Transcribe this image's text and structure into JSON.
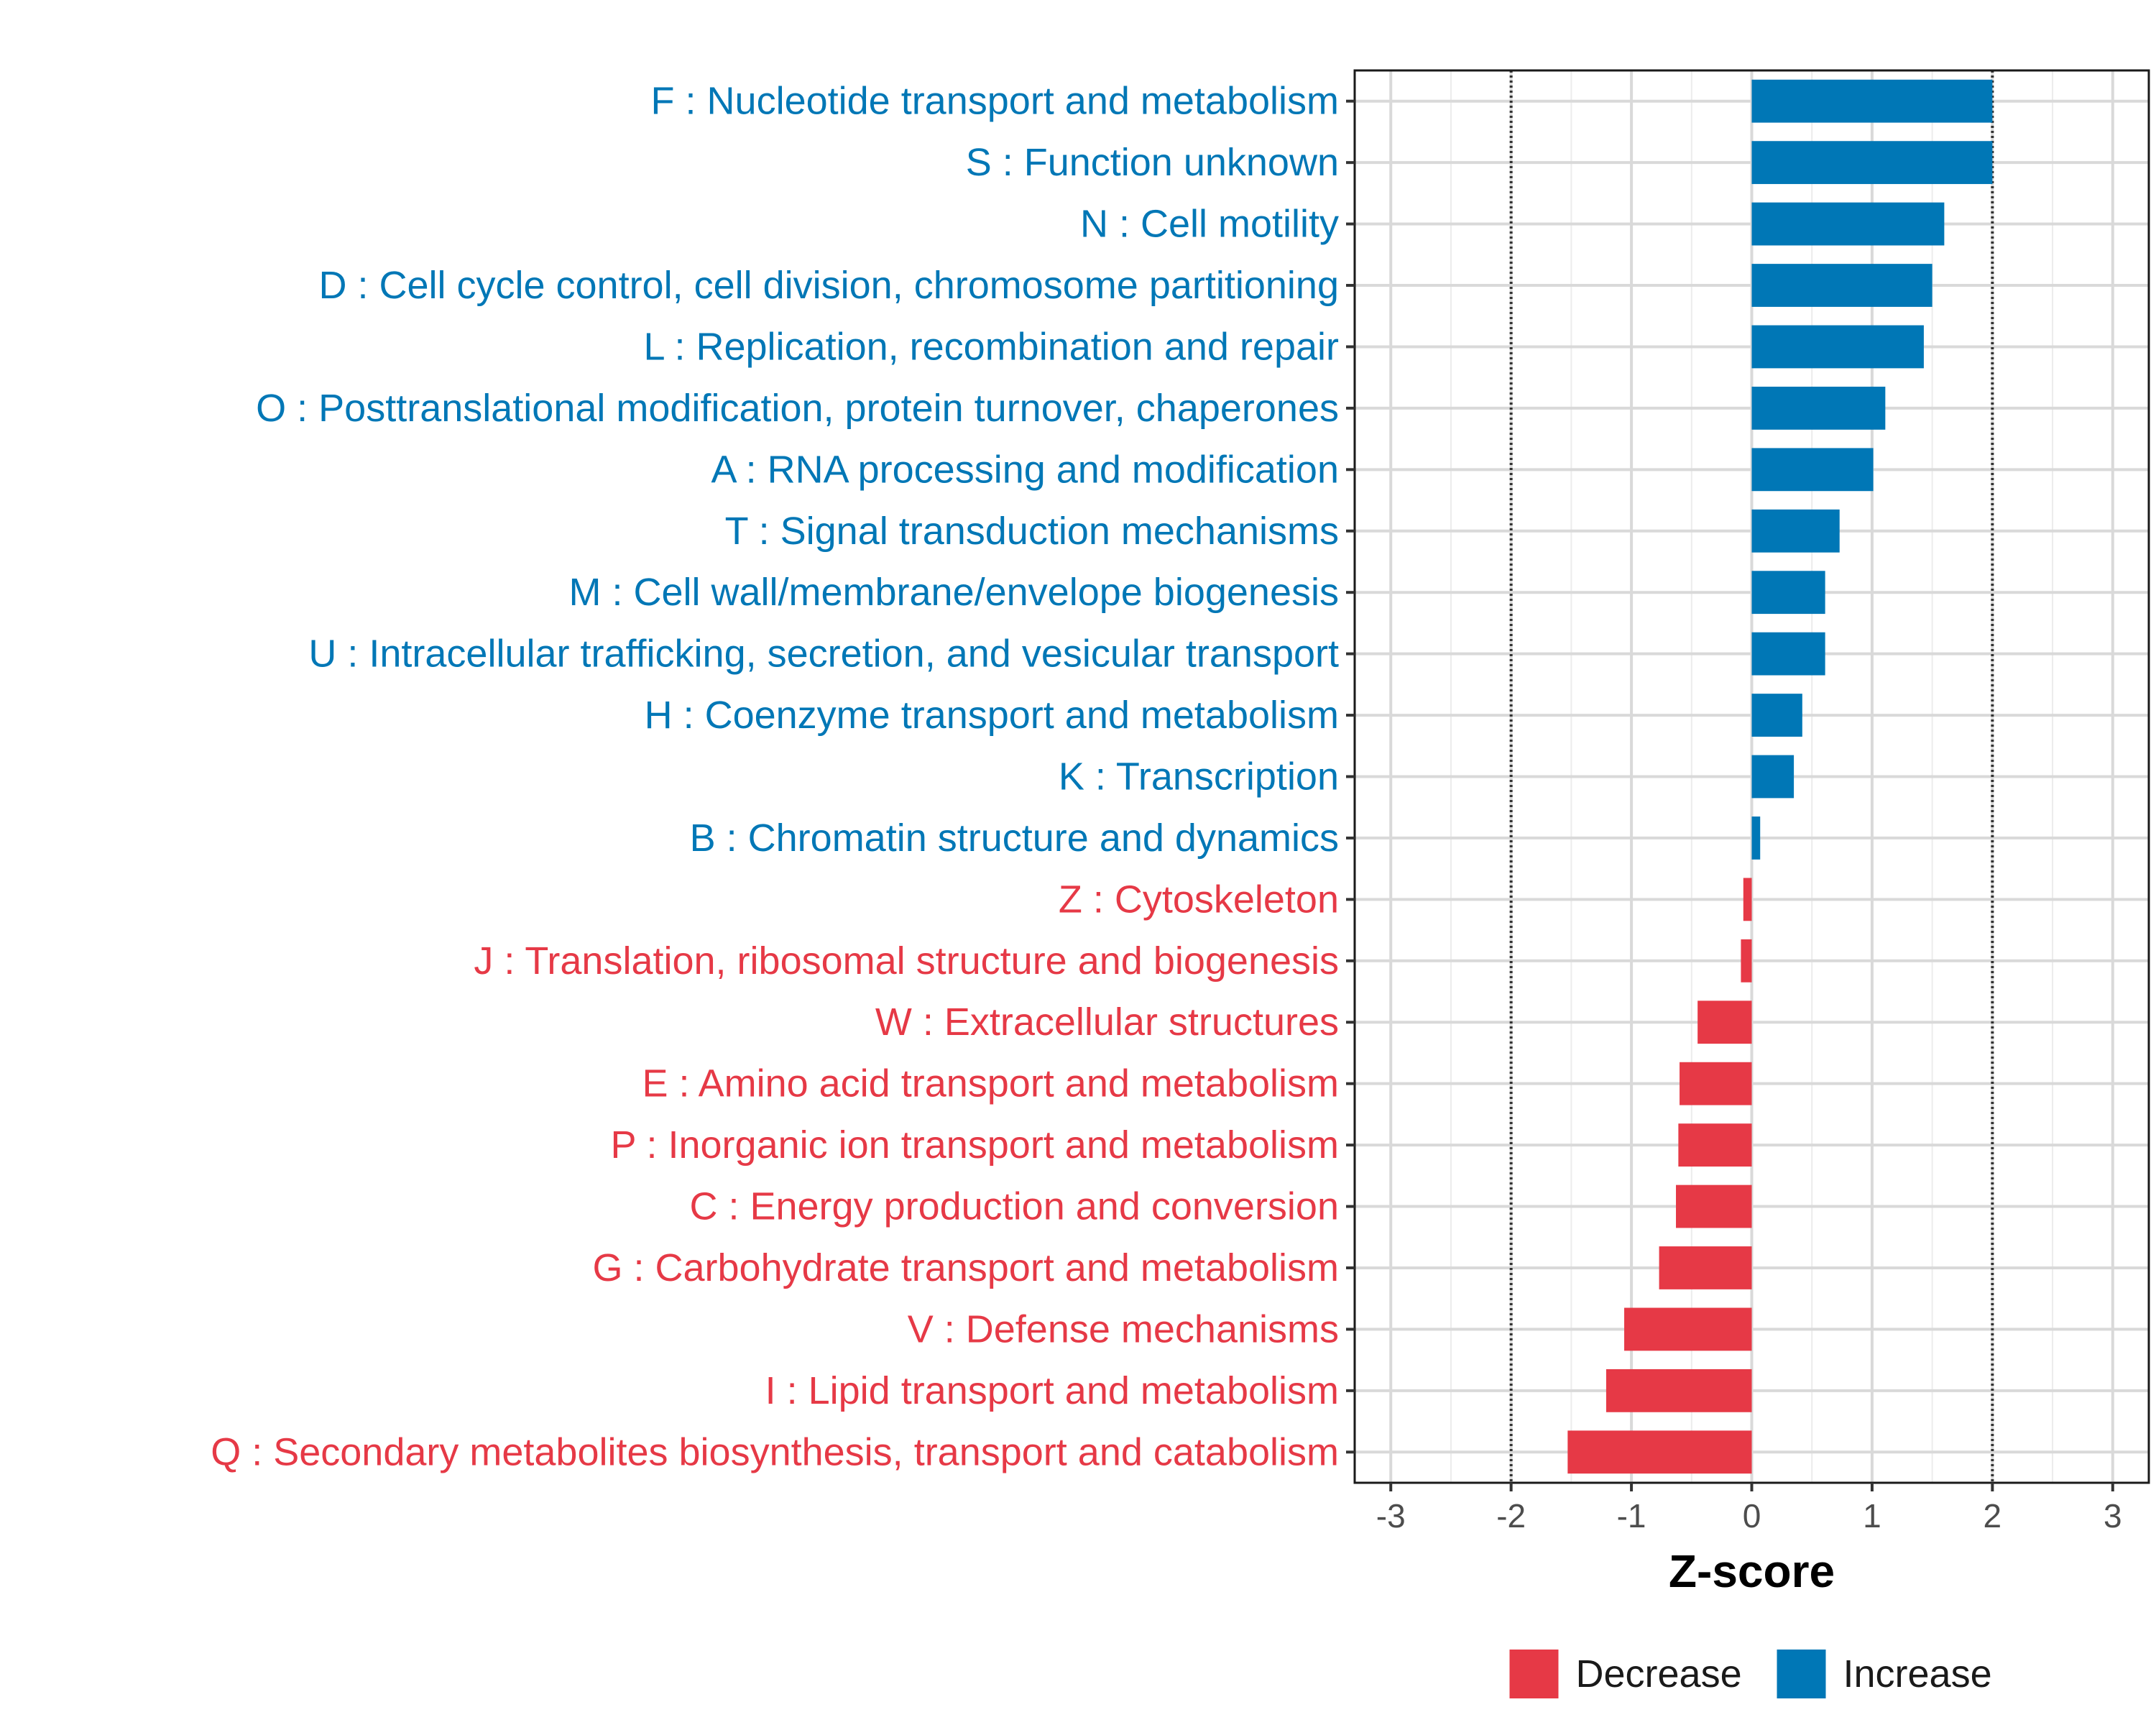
{
  "colors": {
    "increase": "#0077B6",
    "decrease": "#E63946",
    "grid": "#d9d9d9",
    "frame": "#1a1a1a",
    "ref_line": "#333333"
  },
  "chart_data": {
    "type": "bar",
    "orientation": "horizontal",
    "title": "",
    "xlabel": "Z-score",
    "ylabel": "",
    "xlim": [
      -3.3,
      3.3
    ],
    "xticks": [
      -3,
      -2,
      -1,
      0,
      1,
      2,
      3
    ],
    "reference_lines": [
      -2,
      2
    ],
    "grid": true,
    "legend_position": "bottom",
    "legend": [
      {
        "key": "decrease",
        "label": "Decrease"
      },
      {
        "key": "increase",
        "label": "Increase"
      }
    ],
    "categories": [
      "F : Nucleotide transport and metabolism",
      "S : Function unknown",
      "N : Cell motility",
      "D : Cell cycle control, cell division, chromosome partitioning",
      "L : Replication, recombination and repair",
      "O : Posttranslational modification, protein turnover, chaperones",
      "A : RNA processing and modification",
      "T : Signal transduction mechanisms",
      "M : Cell wall/membrane/envelope biogenesis",
      "U : Intracellular trafficking, secretion, and vesicular transport",
      "H : Coenzyme transport and metabolism",
      "K : Transcription",
      "B : Chromatin structure and dynamics",
      "Z : Cytoskeleton",
      "J : Translation, ribosomal structure and biogenesis",
      "W : Extracellular structures",
      "E : Amino acid transport and metabolism",
      "P : Inorganic ion transport and metabolism",
      "C : Energy production and conversion",
      "G : Carbohydrate transport and metabolism",
      "V : Defense mechanisms",
      "I : Lipid transport and metabolism",
      "Q : Secondary metabolites biosynthesis, transport and catabolism"
    ],
    "values": [
      2.0,
      2.0,
      1.6,
      1.5,
      1.43,
      1.11,
      1.01,
      0.73,
      0.61,
      0.61,
      0.42,
      0.35,
      0.07,
      -0.07,
      -0.09,
      -0.45,
      -0.6,
      -0.61,
      -0.63,
      -0.77,
      -1.06,
      -1.21,
      -1.53
    ],
    "groups": [
      "increase",
      "increase",
      "increase",
      "increase",
      "increase",
      "increase",
      "increase",
      "increase",
      "increase",
      "increase",
      "increase",
      "increase",
      "increase",
      "decrease",
      "decrease",
      "decrease",
      "decrease",
      "decrease",
      "decrease",
      "decrease",
      "decrease",
      "decrease",
      "decrease"
    ]
  }
}
